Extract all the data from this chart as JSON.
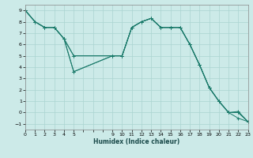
{
  "xlabel": "Humidex (Indice chaleur)",
  "bg_color": "#cceae8",
  "grid_color": "#aad4d0",
  "line_color": "#1a7a6a",
  "xlim": [
    0,
    23
  ],
  "ylim": [
    -1.5,
    9.5
  ],
  "xtick_labels": [
    "0",
    "1",
    "2",
    "3",
    "4",
    "5",
    "",
    "",
    "",
    "9",
    "10",
    "11",
    "12",
    "13",
    "14",
    "15",
    "16",
    "17",
    "18",
    "19",
    "20",
    "21",
    "22",
    "23"
  ],
  "yticks": [
    -1,
    0,
    1,
    2,
    3,
    4,
    5,
    6,
    7,
    8,
    9
  ],
  "lines": [
    {
      "x": [
        0,
        1,
        2,
        3,
        4,
        5,
        9,
        10,
        11,
        12,
        13,
        14,
        15,
        16,
        17,
        18,
        19,
        20,
        21,
        22,
        23
      ],
      "y": [
        9,
        8,
        7.5,
        7.5,
        6.5,
        5,
        5,
        5,
        7.5,
        8,
        8.3,
        7.5,
        7.5,
        7.5,
        6,
        4.2,
        2.2,
        1,
        0,
        -0.5,
        -0.8
      ]
    },
    {
      "x": [
        0,
        1,
        2,
        3,
        4,
        5,
        9,
        10,
        11,
        12,
        13,
        14,
        15,
        16,
        17,
        18,
        19,
        20,
        21,
        22,
        23
      ],
      "y": [
        9,
        8,
        7.5,
        7.5,
        6.5,
        5,
        5,
        5,
        7.5,
        8,
        8.3,
        7.5,
        7.5,
        7.5,
        6,
        4.2,
        2.2,
        1,
        0,
        0,
        -0.8
      ]
    },
    {
      "x": [
        0,
        1,
        2,
        3,
        4,
        5,
        9,
        10,
        11,
        12,
        13,
        14,
        15,
        16,
        17,
        18,
        19,
        20,
        21,
        22,
        23
      ],
      "y": [
        9,
        8,
        7.5,
        7.5,
        6.5,
        3.6,
        5,
        5,
        7.5,
        8,
        8.3,
        7.5,
        7.5,
        7.5,
        6,
        4.2,
        2.2,
        1,
        0,
        0,
        -0.8
      ]
    },
    {
      "x": [
        0,
        1,
        2,
        3,
        4,
        5,
        9,
        10,
        11,
        12,
        13,
        14,
        15,
        16,
        17,
        18,
        19,
        20,
        21,
        22,
        23
      ],
      "y": [
        9,
        8,
        7.5,
        7.5,
        6.5,
        3.6,
        5,
        5,
        7.5,
        8,
        8.3,
        7.5,
        7.5,
        7.5,
        6,
        4.2,
        2.2,
        1,
        0,
        0.1,
        -0.8
      ]
    }
  ],
  "marker": "+"
}
